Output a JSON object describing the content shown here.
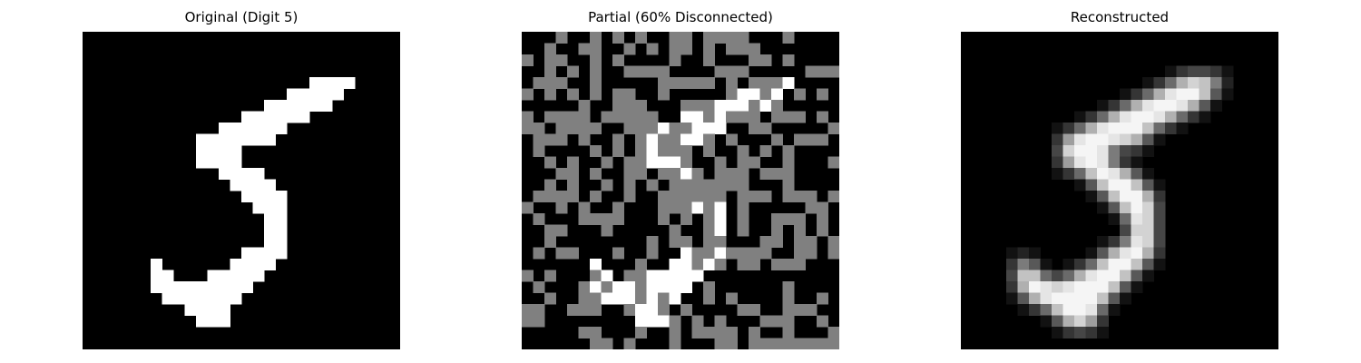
{
  "panels": {
    "original": {
      "title": "Original (Digit 5)"
    },
    "partial": {
      "title": "Partial (60% Disconnected)"
    },
    "reconstructed": {
      "title": "Reconstructed"
    }
  },
  "colors": {
    "background": "#000000",
    "active": "#ffffff",
    "disconnected": "#808080"
  }
}
